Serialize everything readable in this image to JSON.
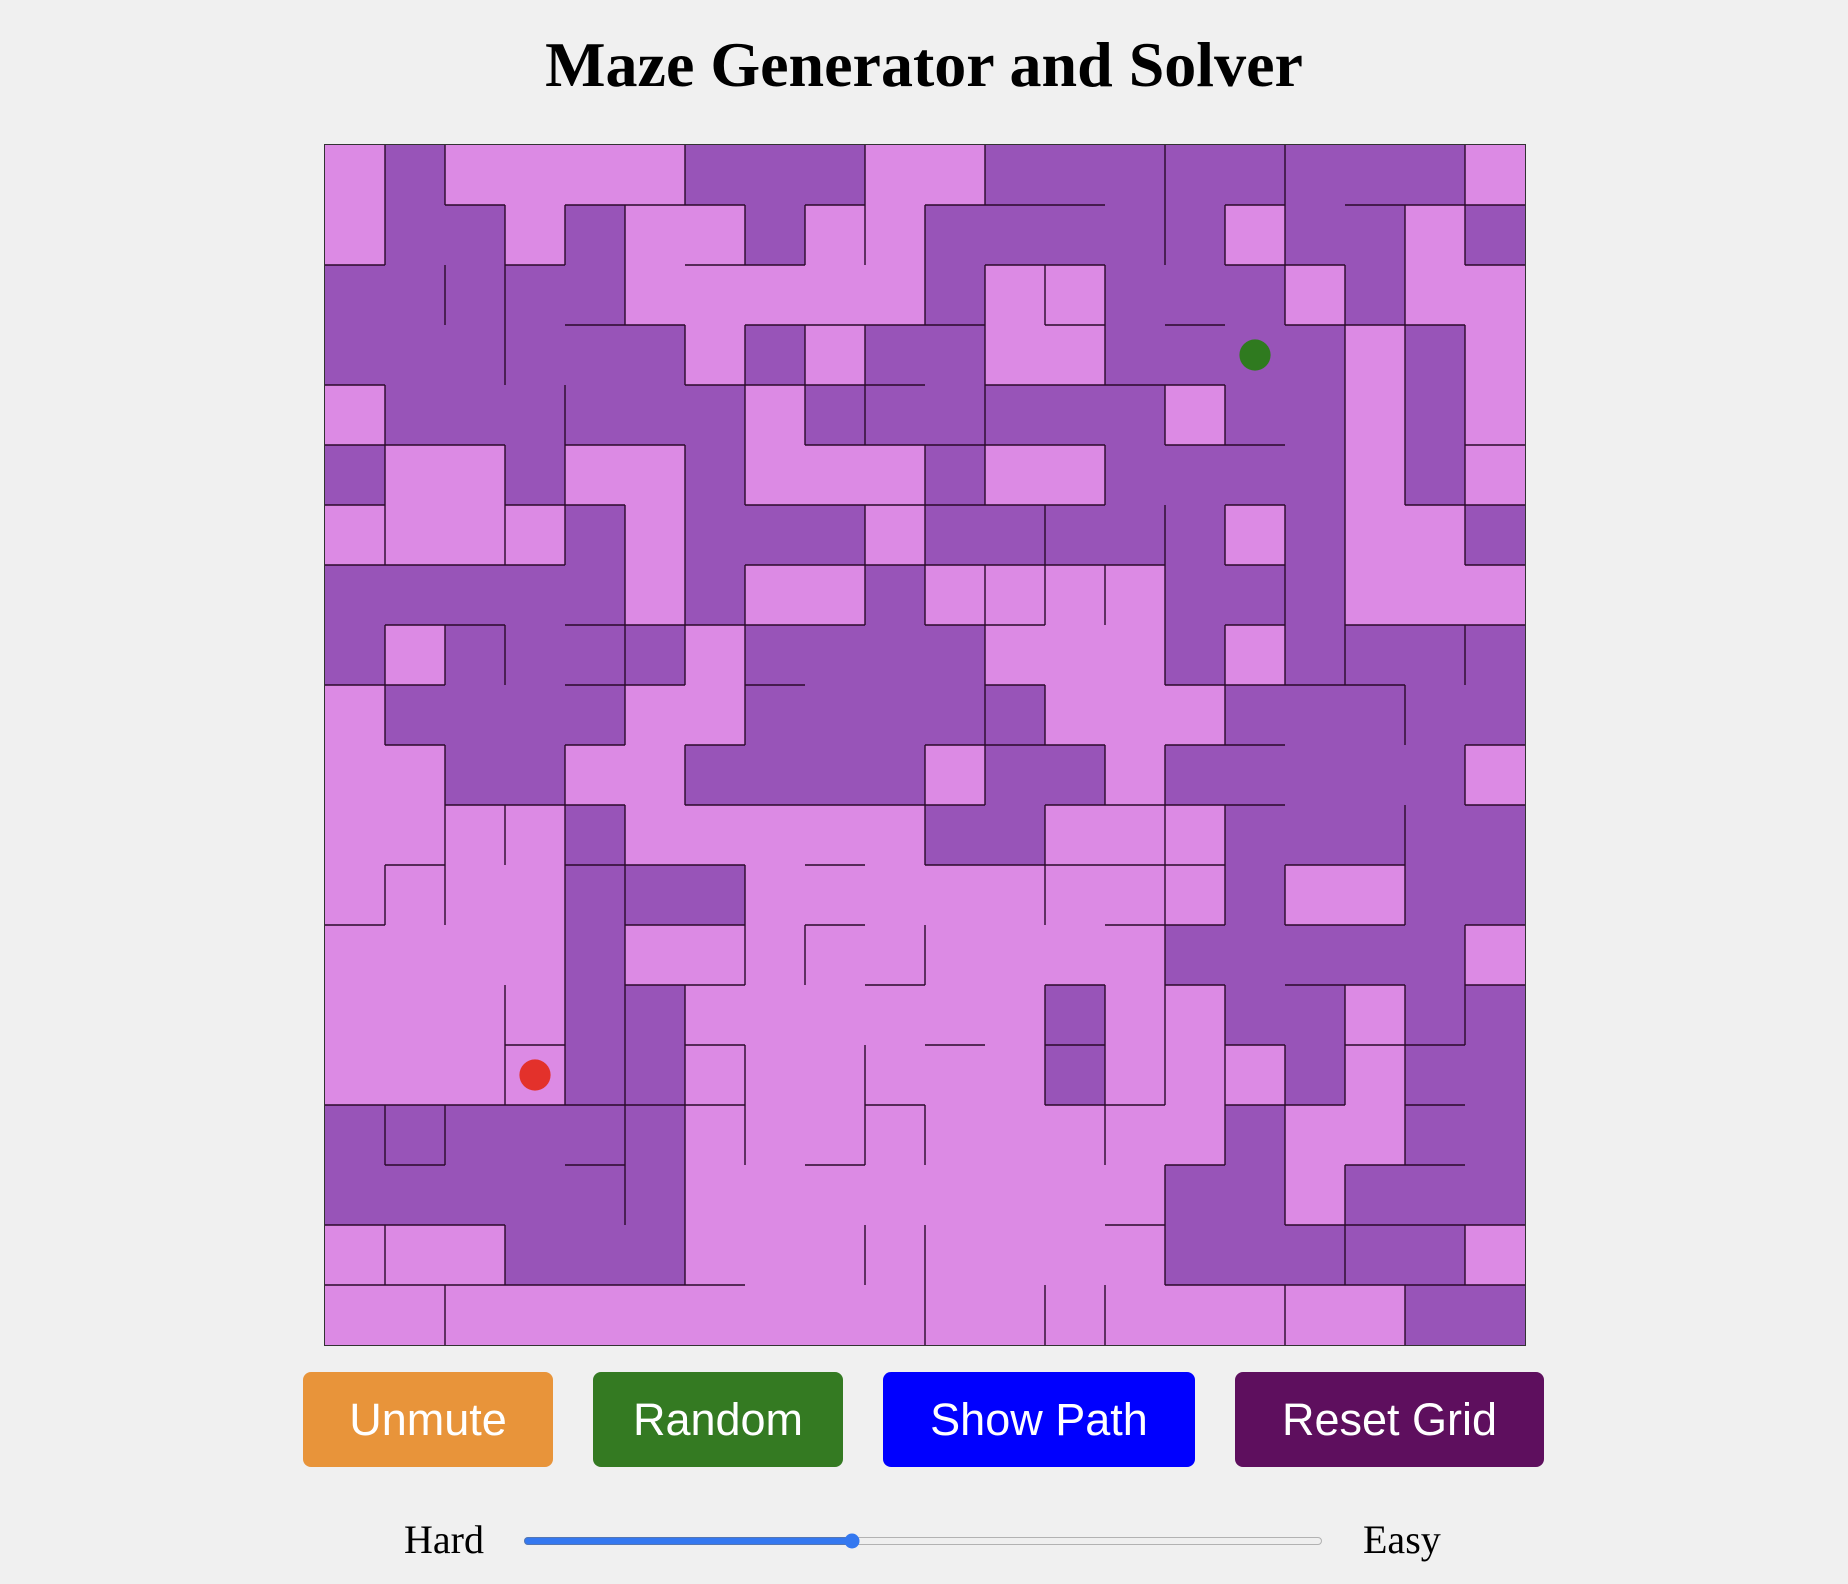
{
  "title": "Maze Generator and Solver",
  "maze": {
    "rows": 20,
    "cols": 20,
    "colors": {
      "path": "#dc8ae4",
      "visited": "#9854b8",
      "wall": "#2a0a2a",
      "start": "#2f7a1f",
      "end": "#e3312b"
    },
    "visited_cells": [
      "01000011100111111110",
      "01101001001111101101",
      "11111000001001110100",
      "11111101011001111010",
      "01111110111111011010",
      "10010010001001111010",
      "00001011101111101001",
      "11111010010000111000",
      "10111101111000101111",
      "01111001111100011111",
      "00110011110110111110",
      "00001000001100011111",
      "00001110000000010011",
      "00001000000000111110",
      "00001100000010011011",
      "00001100000010001011",
      "11111100000000010011",
      "11111100000000110111",
      "00011100000000111110",
      "00000000000000000011"
    ],
    "start": {
      "row": 3,
      "col": 15
    },
    "end": {
      "row": 15,
      "col": 3
    }
  },
  "buttons": {
    "unmute": {
      "label": "Unmute",
      "color": "#e8943a"
    },
    "random": {
      "label": "Random",
      "color": "#347a22"
    },
    "show_path": {
      "label": "Show Path",
      "color": "#0000ff"
    },
    "reset_grid": {
      "label": "Reset Grid",
      "color": "#5e0f5e"
    }
  },
  "difficulty": {
    "left_label": "Hard",
    "right_label": "Easy",
    "min": 0,
    "max": 100,
    "value": 41
  }
}
